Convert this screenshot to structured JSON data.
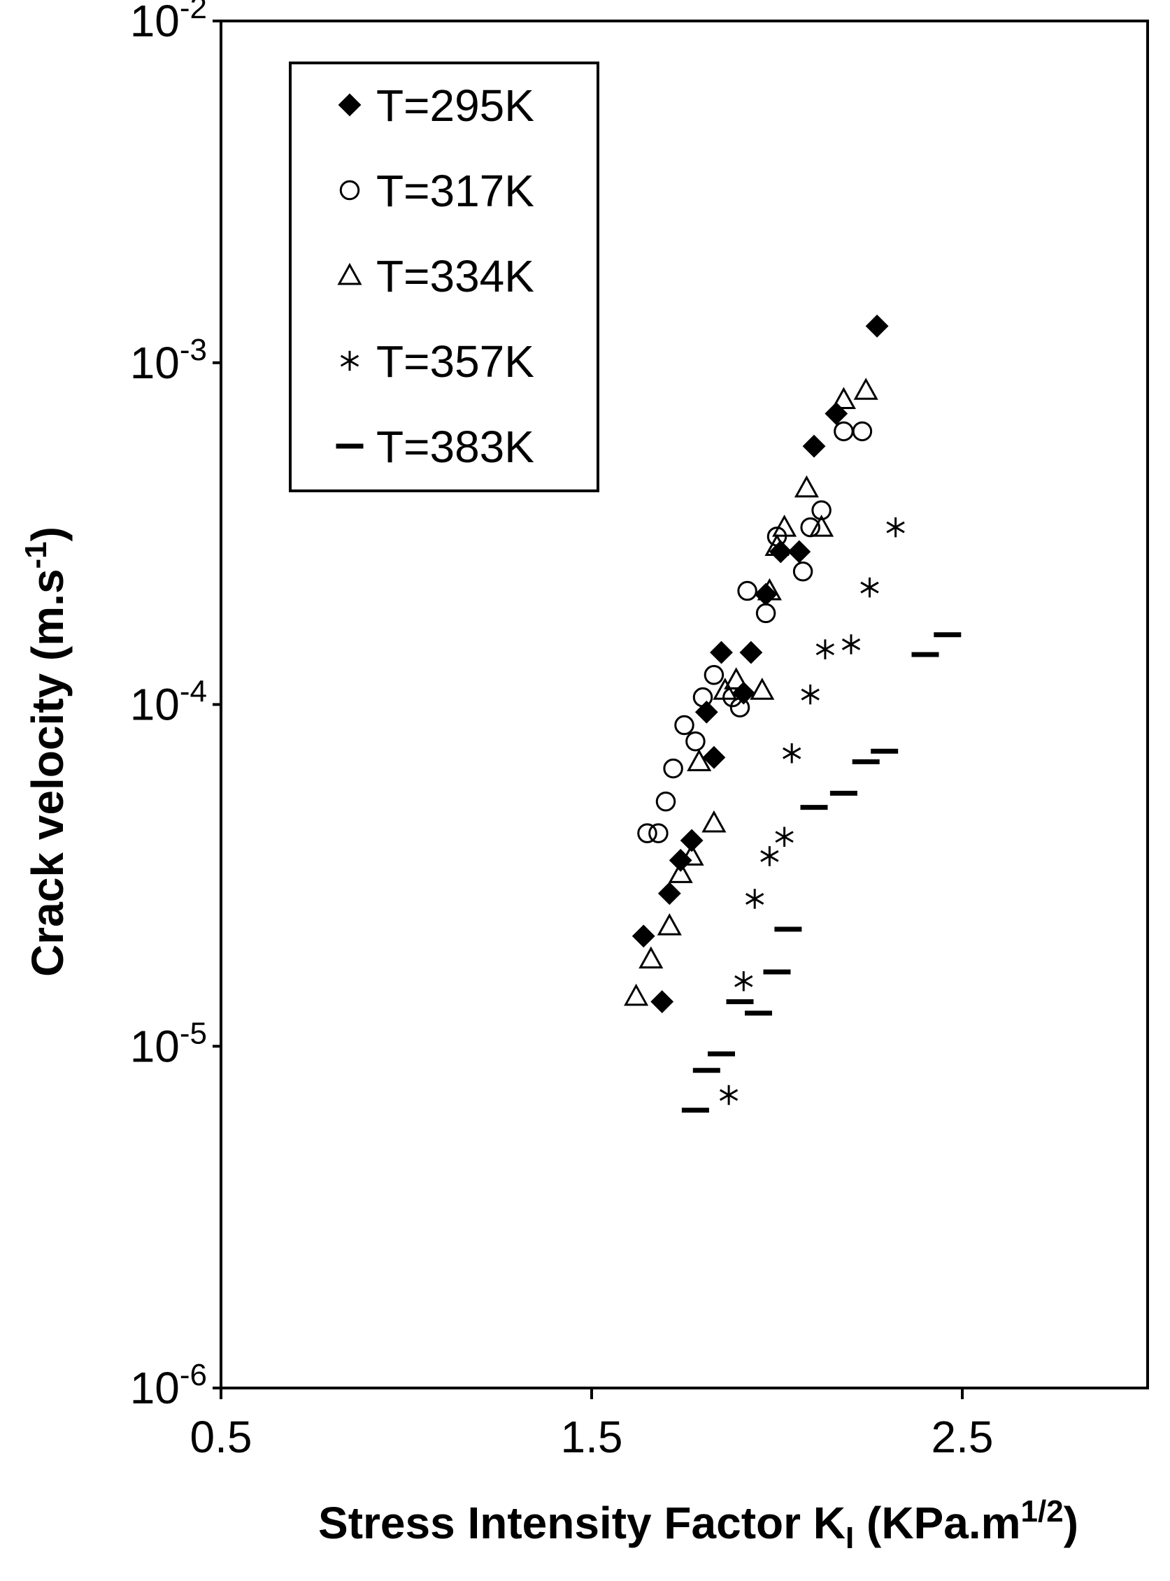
{
  "chart_data": {
    "type": "scatter",
    "title": "",
    "xlabel": {
      "prefix": "Stress Intensity Factor K",
      "sub": "I",
      "mid": " (KPa.m",
      "sup": "1/2",
      "suffix": ")"
    },
    "ylabel": {
      "prefix": "Crack velocity (m.s",
      "sup": "-1",
      "suffix": ")"
    },
    "xlim": [
      0.5,
      3.0
    ],
    "ylim": [
      1e-06,
      0.01
    ],
    "yscale": "log",
    "grid": false,
    "legend_position": "top-left",
    "x_ticks": [
      {
        "value": 0.5,
        "label": "0.5"
      },
      {
        "value": 1.5,
        "label": "1.5"
      },
      {
        "value": 2.5,
        "label": "2.5"
      }
    ],
    "y_ticks": [
      {
        "value": 0.01,
        "base": "10",
        "exp": "-2"
      },
      {
        "value": 0.001,
        "base": "10",
        "exp": "-3"
      },
      {
        "value": 0.0001,
        "base": "10",
        "exp": "-4"
      },
      {
        "value": 1e-05,
        "base": "10",
        "exp": "-5"
      },
      {
        "value": 1e-06,
        "base": "10",
        "exp": "-6"
      }
    ],
    "series": [
      {
        "name": "T=295K",
        "marker": "diamond-filled",
        "color": "#000000",
        "points": [
          [
            1.64,
            2.1e-05
          ],
          [
            1.69,
            1.35e-05
          ],
          [
            1.71,
            2.8e-05
          ],
          [
            1.74,
            3.5e-05
          ],
          [
            1.77,
            4e-05
          ],
          [
            1.81,
            9.5e-05
          ],
          [
            1.83,
            7e-05
          ],
          [
            1.85,
            0.000142
          ],
          [
            1.91,
            0.000108
          ],
          [
            1.93,
            0.000142
          ],
          [
            1.97,
            0.00021
          ],
          [
            2.01,
            0.00028
          ],
          [
            2.06,
            0.00028
          ],
          [
            2.1,
            0.00057
          ],
          [
            2.16,
            0.00071
          ],
          [
            2.27,
            0.00128
          ]
        ]
      },
      {
        "name": "T=317K",
        "marker": "circle-open",
        "color": "#000000",
        "points": [
          [
            1.65,
            4.2e-05
          ],
          [
            1.68,
            4.2e-05
          ],
          [
            1.7,
            5.2e-05
          ],
          [
            1.72,
            6.5e-05
          ],
          [
            1.75,
            8.7e-05
          ],
          [
            1.78,
            7.8e-05
          ],
          [
            1.8,
            0.000105
          ],
          [
            1.83,
            0.000122
          ],
          [
            1.88,
            0.000105
          ],
          [
            1.9,
            9.8e-05
          ],
          [
            1.92,
            0.000215
          ],
          [
            1.97,
            0.000185
          ],
          [
            2.0,
            0.00031
          ],
          [
            2.07,
            0.000245
          ],
          [
            2.09,
            0.00033
          ],
          [
            2.12,
            0.00037
          ],
          [
            2.18,
            0.00063
          ],
          [
            2.23,
            0.00063
          ]
        ]
      },
      {
        "name": "T=334K",
        "marker": "triangle-open",
        "color": "#000000",
        "points": [
          [
            1.62,
            1.4e-05
          ],
          [
            1.66,
            1.8e-05
          ],
          [
            1.71,
            2.25e-05
          ],
          [
            1.74,
            3.2e-05
          ],
          [
            1.77,
            3.6e-05
          ],
          [
            1.79,
            6.8e-05
          ],
          [
            1.83,
            4.5e-05
          ],
          [
            1.86,
            0.00011
          ],
          [
            1.89,
            0.000118
          ],
          [
            1.96,
            0.00011
          ],
          [
            1.98,
            0.000215
          ],
          [
            2.0,
            0.00029
          ],
          [
            2.02,
            0.00033
          ],
          [
            2.08,
            0.00043
          ],
          [
            2.12,
            0.00033
          ],
          [
            2.18,
            0.00078
          ],
          [
            2.24,
            0.00083
          ]
        ]
      },
      {
        "name": "T=357K",
        "marker": "asterisk",
        "color": "#000000",
        "points": [
          [
            1.87,
            7.2e-06
          ],
          [
            1.91,
            1.55e-05
          ],
          [
            1.94,
            2.7e-05
          ],
          [
            1.98,
            3.6e-05
          ],
          [
            2.02,
            4.1e-05
          ],
          [
            2.04,
            7.2e-05
          ],
          [
            2.09,
            0.000107
          ],
          [
            2.13,
            0.000145
          ],
          [
            2.2,
            0.00015
          ],
          [
            2.25,
            0.00022
          ],
          [
            2.32,
            0.00033
          ]
        ]
      },
      {
        "name": "T=383K",
        "marker": "dash",
        "color": "#000000",
        "points": [
          [
            1.78,
            6.5e-06
          ],
          [
            1.81,
            8.5e-06
          ],
          [
            1.85,
            9.5e-06
          ],
          [
            1.9,
            1.35e-05
          ],
          [
            1.95,
            1.25e-05
          ],
          [
            2.0,
            1.65e-05
          ],
          [
            2.03,
            2.2e-05
          ],
          [
            2.1,
            5e-05
          ],
          [
            2.18,
            5.5e-05
          ],
          [
            2.24,
            6.8e-05
          ],
          [
            2.29,
            7.3e-05
          ],
          [
            2.4,
            0.00014
          ],
          [
            2.46,
            0.00016
          ]
        ]
      }
    ]
  }
}
